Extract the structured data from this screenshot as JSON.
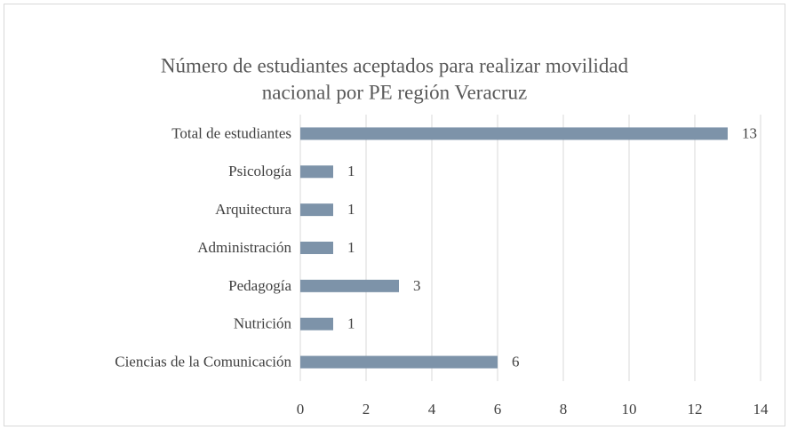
{
  "chart_data": {
    "type": "hbar",
    "title": [
      "Número de estudiantes aceptados para realizar movilidad",
      "nacional por PE región Veracruz"
    ],
    "categories": [
      "Total de estudiantes",
      "Psicología",
      "Arquitectura",
      "Administración",
      "Pedagogía",
      "Nutrición",
      "Ciencias de la Comunicación"
    ],
    "values": [
      13,
      1,
      1,
      1,
      3,
      1,
      6
    ],
    "color": "#7d93a9",
    "xlim": [
      0,
      14
    ],
    "xticks": [
      0,
      2,
      4,
      6,
      8,
      10,
      12,
      14
    ],
    "grid": true
  }
}
